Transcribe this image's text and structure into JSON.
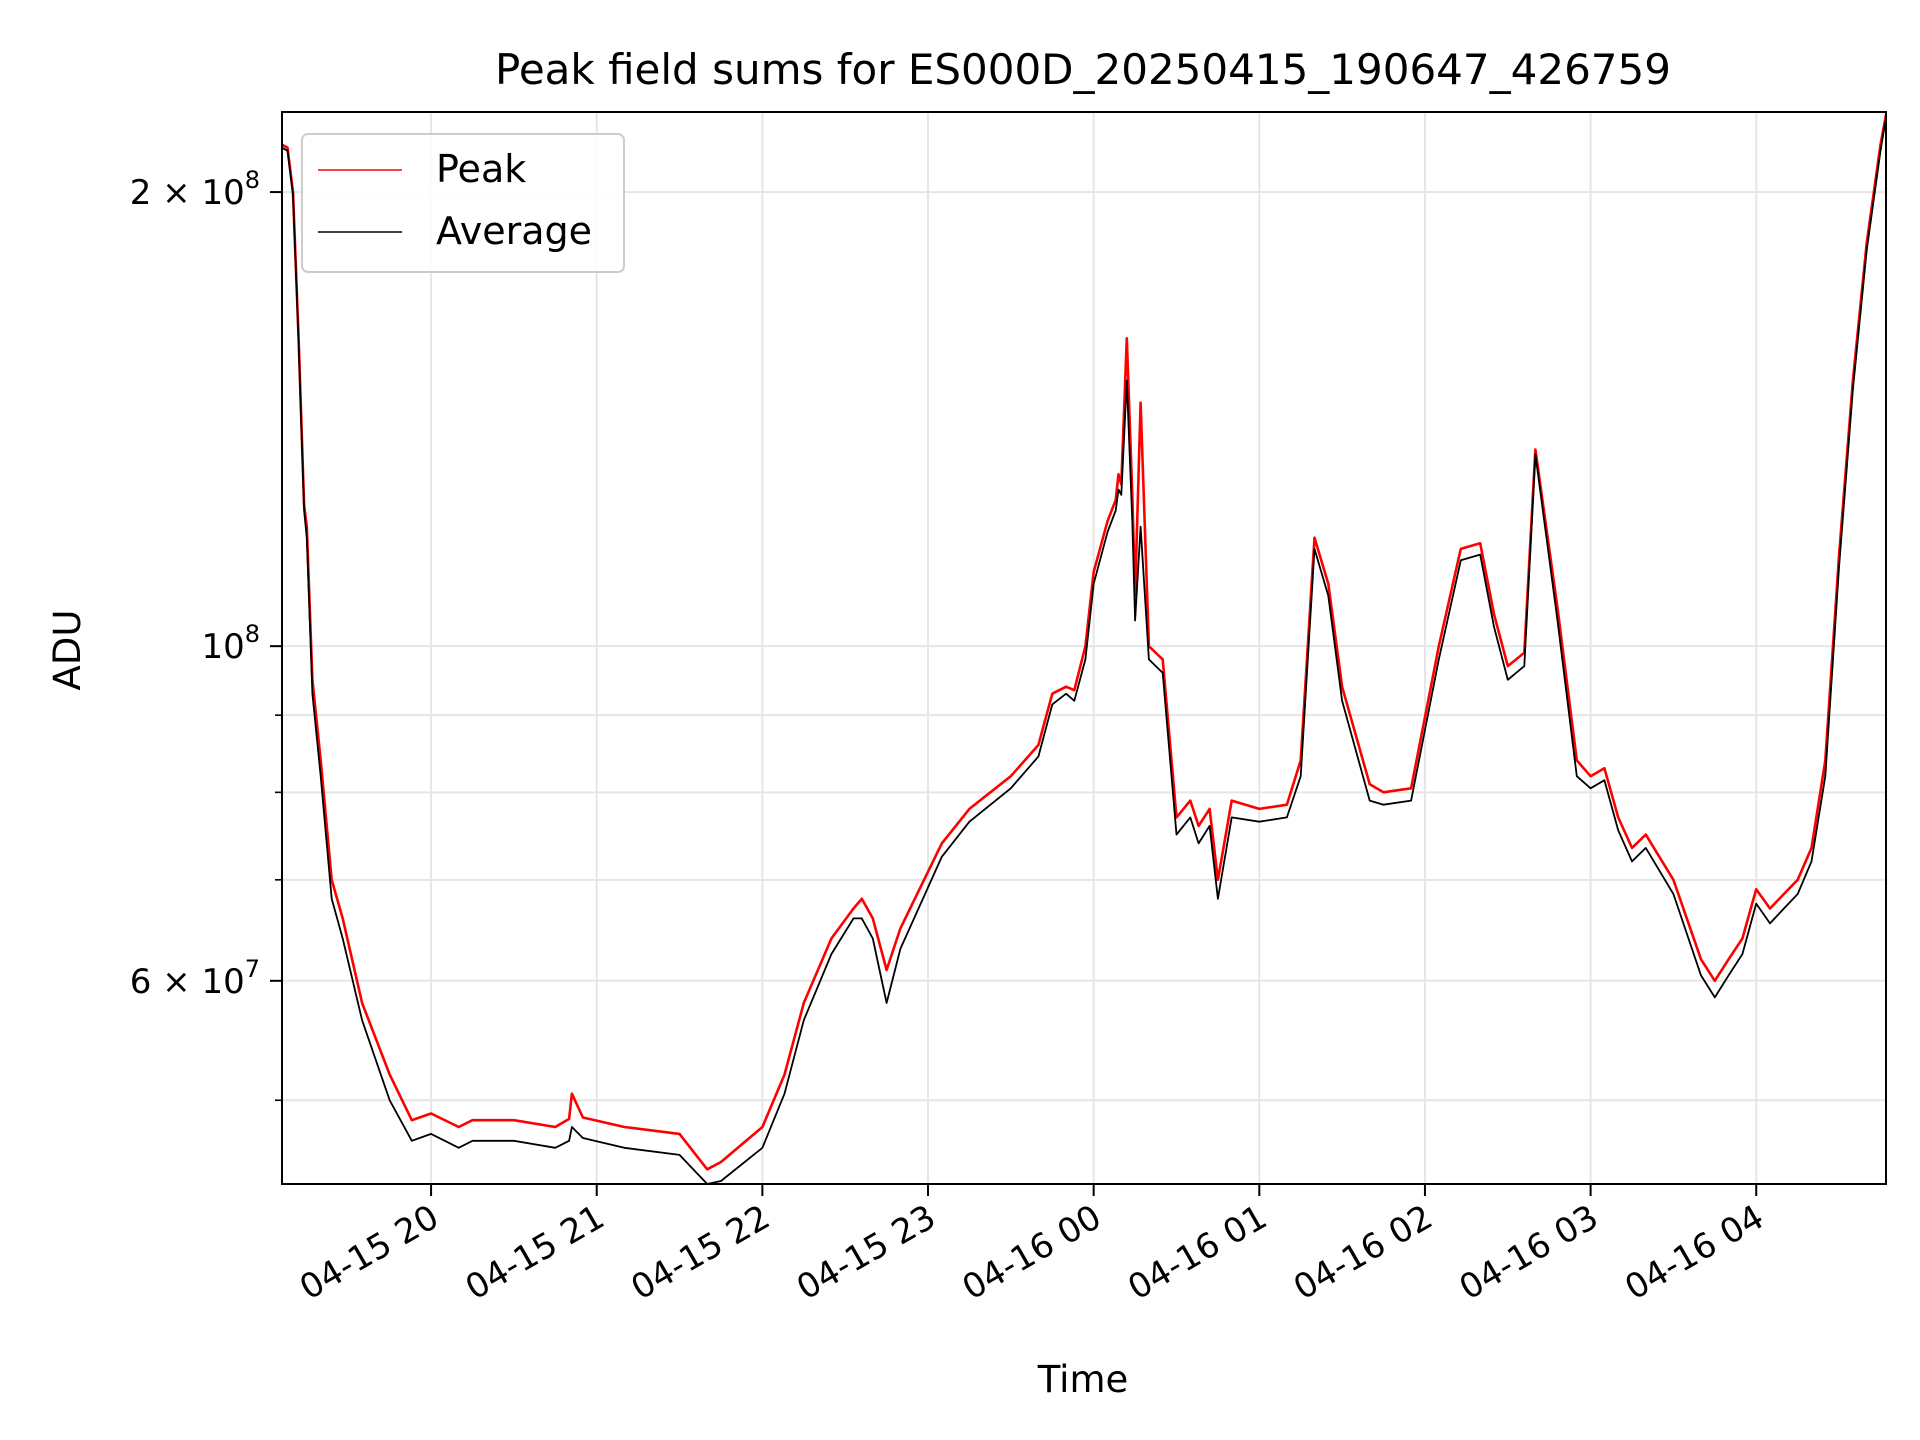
{
  "chart_data": {
    "type": "line",
    "title": "Peak field sums for ES000D_20250415_190647_426759",
    "xlabel": "Time",
    "ylabel": "ADU",
    "yscale": "log",
    "xlim": [
      "2025-04-15 19:06",
      "2025-04-16 04:47"
    ],
    "ylim": [
      44000000,
      226000000
    ],
    "grid": true,
    "legend_position": "top-left",
    "x_tick_labels": [
      "04-15 20",
      "04-15 21",
      "04-15 22",
      "04-15 23",
      "04-16 00",
      "04-16 01",
      "04-16 02",
      "04-16 03",
      "04-16 04"
    ],
    "x_ticks": [
      "2025-04-15 20:00",
      "2025-04-15 21:00",
      "2025-04-15 22:00",
      "2025-04-15 23:00",
      "2025-04-16 00:00",
      "2025-04-16 01:00",
      "2025-04-16 02:00",
      "2025-04-16 03:00",
      "2025-04-16 04:00"
    ],
    "y_tick_labels": [
      {
        "value": 200000000,
        "base": "2 × 10",
        "exp": "8"
      },
      {
        "value": 100000000,
        "base": "10",
        "exp": "8"
      },
      {
        "value": 60000000,
        "base": "6 × 10",
        "exp": "7"
      }
    ],
    "y_minor_ticks": [
      50000000,
      70000000,
      80000000,
      90000000
    ],
    "colors": {
      "Peak": "#ff0000",
      "Average": "#000000"
    },
    "series": [
      {
        "name": "Peak",
        "x": [
          "2025-04-15 19:06",
          "2025-04-15 19:08",
          "2025-04-15 19:10",
          "2025-04-15 19:12",
          "2025-04-15 19:14",
          "2025-04-15 19:15",
          "2025-04-15 19:17",
          "2025-04-15 19:20",
          "2025-04-15 19:24",
          "2025-04-15 19:28",
          "2025-04-15 19:35",
          "2025-04-15 19:45",
          "2025-04-15 19:53",
          "2025-04-15 20:00",
          "2025-04-15 20:10",
          "2025-04-15 20:15",
          "2025-04-15 20:30",
          "2025-04-15 20:45",
          "2025-04-15 20:50",
          "2025-04-15 20:51",
          "2025-04-15 20:55",
          "2025-04-15 21:10",
          "2025-04-15 21:30",
          "2025-04-15 21:40",
          "2025-04-15 21:45",
          "2025-04-15 22:00",
          "2025-04-15 22:08",
          "2025-04-15 22:15",
          "2025-04-15 22:25",
          "2025-04-15 22:33",
          "2025-04-15 22:36",
          "2025-04-15 22:40",
          "2025-04-15 22:45",
          "2025-04-15 22:50",
          "2025-04-15 23:05",
          "2025-04-15 23:15",
          "2025-04-15 23:30",
          "2025-04-15 23:40",
          "2025-04-15 23:45",
          "2025-04-15 23:50",
          "2025-04-15 23:53",
          "2025-04-15 23:57",
          "2025-04-16 00:00",
          "2025-04-16 00:05",
          "2025-04-16 00:08",
          "2025-04-16 00:09",
          "2025-04-16 00:10",
          "2025-04-16 00:12",
          "2025-04-16 00:14",
          "2025-04-16 00:15",
          "2025-04-16 00:17",
          "2025-04-16 00:20",
          "2025-04-16 00:25",
          "2025-04-16 00:27",
          "2025-04-16 00:30",
          "2025-04-16 00:35",
          "2025-04-16 00:38",
          "2025-04-16 00:42",
          "2025-04-16 00:45",
          "2025-04-16 00:50",
          "2025-04-16 01:00",
          "2025-04-16 01:10",
          "2025-04-16 01:15",
          "2025-04-16 01:20",
          "2025-04-16 01:25",
          "2025-04-16 01:30",
          "2025-04-16 01:40",
          "2025-04-16 01:45",
          "2025-04-16 01:55",
          "2025-04-16 02:05",
          "2025-04-16 02:13",
          "2025-04-16 02:20",
          "2025-04-16 02:25",
          "2025-04-16 02:30",
          "2025-04-16 02:36",
          "2025-04-16 02:40",
          "2025-04-16 02:48",
          "2025-04-16 02:55",
          "2025-04-16 03:00",
          "2025-04-16 03:05",
          "2025-04-16 03:10",
          "2025-04-16 03:15",
          "2025-04-16 03:20",
          "2025-04-16 03:30",
          "2025-04-16 03:40",
          "2025-04-16 03:45",
          "2025-04-16 03:50",
          "2025-04-16 03:55",
          "2025-04-16 04:00",
          "2025-04-16 04:05",
          "2025-04-16 04:10",
          "2025-04-16 04:15",
          "2025-04-16 04:20",
          "2025-04-16 04:25",
          "2025-04-16 04:30",
          "2025-04-16 04:35",
          "2025-04-16 04:40",
          "2025-04-16 04:45",
          "2025-04-16 04:47"
        ],
        "values": [
          215000000,
          214000000,
          200000000,
          160000000,
          124000000,
          120000000,
          95000000,
          84000000,
          70000000,
          66000000,
          58000000,
          52000000,
          48500000,
          49000000,
          48000000,
          48500000,
          48500000,
          48000000,
          48600000,
          50500000,
          48700000,
          48000000,
          47500000,
          45000000,
          45500000,
          48000000,
          52000000,
          58000000,
          64000000,
          67000000,
          68000000,
          66000000,
          61000000,
          65000000,
          74000000,
          78000000,
          82000000,
          86000000,
          93000000,
          94000000,
          93500000,
          100000000,
          112000000,
          121000000,
          125000000,
          130000000,
          128000000,
          160000000,
          126000000,
          108000000,
          145000000,
          100000000,
          98000000,
          89000000,
          77000000,
          79000000,
          76000000,
          78000000,
          70000000,
          79000000,
          78000000,
          78500000,
          84000000,
          118000000,
          110000000,
          94000000,
          81000000,
          80000000,
          80500000,
          100000000,
          116000000,
          117000000,
          105000000,
          97000000,
          99000000,
          135000000,
          106000000,
          84000000,
          82000000,
          83000000,
          77000000,
          73500000,
          75000000,
          70000000,
          62000000,
          60000000,
          62000000,
          64000000,
          69000000,
          67000000,
          68500000,
          70000000,
          73500000,
          84000000,
          115000000,
          150000000,
          185000000,
          215000000,
          225000000
        ]
      },
      {
        "name": "Average",
        "x": [
          "2025-04-15 19:06",
          "2025-04-15 19:08",
          "2025-04-15 19:10",
          "2025-04-15 19:12",
          "2025-04-15 19:14",
          "2025-04-15 19:15",
          "2025-04-15 19:17",
          "2025-04-15 19:20",
          "2025-04-15 19:24",
          "2025-04-15 19:28",
          "2025-04-15 19:35",
          "2025-04-15 19:45",
          "2025-04-15 19:53",
          "2025-04-15 20:00",
          "2025-04-15 20:10",
          "2025-04-15 20:15",
          "2025-04-15 20:30",
          "2025-04-15 20:45",
          "2025-04-15 20:50",
          "2025-04-15 20:51",
          "2025-04-15 20:55",
          "2025-04-15 21:10",
          "2025-04-15 21:30",
          "2025-04-15 21:40",
          "2025-04-15 21:45",
          "2025-04-15 22:00",
          "2025-04-15 22:08",
          "2025-04-15 22:15",
          "2025-04-15 22:25",
          "2025-04-15 22:33",
          "2025-04-15 22:36",
          "2025-04-15 22:40",
          "2025-04-15 22:45",
          "2025-04-15 22:50",
          "2025-04-15 23:05",
          "2025-04-15 23:15",
          "2025-04-15 23:30",
          "2025-04-15 23:40",
          "2025-04-15 23:45",
          "2025-04-15 23:50",
          "2025-04-15 23:53",
          "2025-04-15 23:57",
          "2025-04-16 00:00",
          "2025-04-16 00:05",
          "2025-04-16 00:08",
          "2025-04-16 00:09",
          "2025-04-16 00:10",
          "2025-04-16 00:12",
          "2025-04-16 00:14",
          "2025-04-16 00:15",
          "2025-04-16 00:17",
          "2025-04-16 00:20",
          "2025-04-16 00:25",
          "2025-04-16 00:27",
          "2025-04-16 00:30",
          "2025-04-16 00:35",
          "2025-04-16 00:38",
          "2025-04-16 00:42",
          "2025-04-16 00:45",
          "2025-04-16 00:50",
          "2025-04-16 01:00",
          "2025-04-16 01:10",
          "2025-04-16 01:15",
          "2025-04-16 01:20",
          "2025-04-16 01:25",
          "2025-04-16 01:30",
          "2025-04-16 01:40",
          "2025-04-16 01:45",
          "2025-04-16 01:55",
          "2025-04-16 02:05",
          "2025-04-16 02:13",
          "2025-04-16 02:20",
          "2025-04-16 02:25",
          "2025-04-16 02:30",
          "2025-04-16 02:36",
          "2025-04-16 02:40",
          "2025-04-16 02:48",
          "2025-04-16 02:55",
          "2025-04-16 03:00",
          "2025-04-16 03:05",
          "2025-04-16 03:10",
          "2025-04-16 03:15",
          "2025-04-16 03:20",
          "2025-04-16 03:30",
          "2025-04-16 03:40",
          "2025-04-16 03:45",
          "2025-04-16 03:50",
          "2025-04-16 03:55",
          "2025-04-16 04:00",
          "2025-04-16 04:05",
          "2025-04-16 04:10",
          "2025-04-16 04:15",
          "2025-04-16 04:20",
          "2025-04-16 04:25",
          "2025-04-16 04:30",
          "2025-04-16 04:35",
          "2025-04-16 04:40",
          "2025-04-16 04:45",
          "2025-04-16 04:47"
        ],
        "values": [
          214000000,
          213000000,
          199000000,
          159000000,
          123000000,
          118000000,
          93000000,
          82000000,
          68000000,
          64000000,
          56500000,
          50000000,
          47000000,
          47500000,
          46500000,
          47000000,
          47000000,
          46500000,
          47000000,
          48000000,
          47200000,
          46500000,
          46000000,
          44000000,
          44200000,
          46500000,
          50500000,
          56500000,
          62500000,
          66000000,
          66000000,
          64000000,
          58000000,
          63000000,
          72500000,
          76500000,
          80500000,
          84500000,
          91500000,
          93000000,
          92000000,
          98000000,
          110000000,
          119000000,
          123000000,
          127000000,
          126000000,
          150000000,
          121000000,
          104000000,
          120000000,
          98000000,
          96000000,
          87000000,
          75000000,
          77000000,
          74000000,
          76000000,
          68000000,
          77000000,
          76500000,
          77000000,
          82000000,
          116000000,
          108000000,
          92000000,
          79000000,
          78500000,
          79000000,
          98000000,
          114000000,
          115000000,
          103000000,
          95000000,
          97000000,
          134000000,
          104000000,
          82000000,
          80500000,
          81500000,
          75500000,
          72000000,
          73500000,
          68500000,
          60500000,
          58500000,
          60500000,
          62500000,
          67500000,
          65500000,
          67000000,
          68500000,
          72000000,
          82000000,
          113000000,
          148000000,
          183000000,
          213000000,
          224000000
        ]
      }
    ]
  }
}
